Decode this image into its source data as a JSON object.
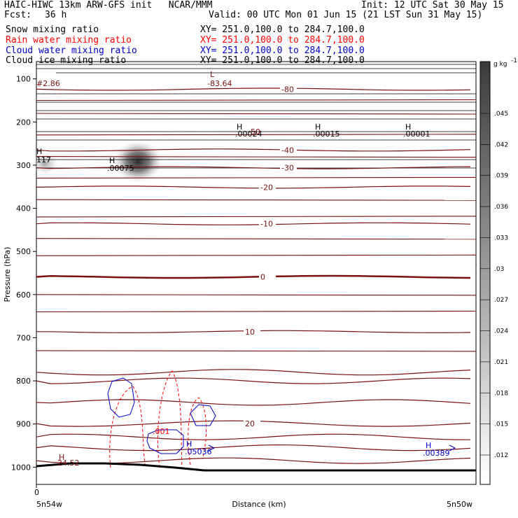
{
  "header": {
    "line1_left": "HAIC-HIWC 13km ARW-GFS init   NCAR/MMM",
    "line1_right": "Init: 12 UTC Sat 30 May 15",
    "fcst_label": "Fcst:",
    "fcst_value": "36 h",
    "valid": "Valid: 00 UTC Mon 01 Jun 15 (21 LST Sun 31 May 15)",
    "fields": [
      {
        "name": "Snow mixing ratio",
        "xy": "XY= 251.0,100.0 to 284.7,100.0",
        "color": "#000000"
      },
      {
        "name": "Rain water mixing ratio",
        "xy": "XY= 251.0,100.0 to 284.7,100.0",
        "color": "#ff0000"
      },
      {
        "name": "Cloud water mixing ratio",
        "xy": "XY= 251.0,100.0 to 284.7,100.0",
        "color": "#0000cc"
      },
      {
        "name": "Cloud ice mixing ratio",
        "xy": "XY= 251.0,100.0 to 284.7,100.0",
        "color": "#000000"
      }
    ]
  },
  "chart_data": {
    "type": "contour-cross-section",
    "ylabel": "Pressure (hPa)",
    "xlabel": "Distance (km)",
    "yticks": [
      100,
      200,
      300,
      400,
      500,
      600,
      700,
      800,
      900,
      1000
    ],
    "ylim": [
      60,
      1040
    ],
    "x_origin_label": "0",
    "x_left_label": "5n54w",
    "x_right_label": "5n50w",
    "temperature_contours": [
      {
        "label": "-80",
        "p": 124
      },
      {
        "label": "-40",
        "p": 265
      },
      {
        "label": "-30",
        "p": 306
      },
      {
        "label": "-20",
        "p": 351
      },
      {
        "label": "-10",
        "p": 436
      },
      {
        "label": "0",
        "p": 559
      },
      {
        "label": "10",
        "p": 686
      },
      {
        "label": "20",
        "p": 899
      }
    ],
    "temperature_color": "#7a1010",
    "annotations": [
      {
        "text": "L",
        "color": "#7a1010"
      },
      {
        "text": "-83.64",
        "color": "#7a1010"
      },
      {
        "text": "#2.86",
        "color": "#7a1010"
      },
      {
        "text": "H",
        "color": "#000000"
      },
      {
        "text": ".00024",
        "color": "#000000"
      },
      {
        "text": ".00015",
        "color": "#000000"
      },
      {
        "text": ".00001",
        "color": "#000000"
      },
      {
        "text": ".00075",
        "color": "#000000"
      },
      {
        "text": "117",
        "color": "#000000"
      },
      {
        "text": "-50",
        "color": "#7a1010"
      },
      {
        "text": "24.52",
        "color": "#7a1010"
      },
      {
        "text": ".001",
        "color": "#ff0000"
      },
      {
        "text": ".05036",
        "color": "#0000cc"
      },
      {
        "text": ".00389",
        "color": "#0000cc"
      }
    ],
    "colorbar": {
      "unit": "g kg",
      "unit_sup": "-1",
      "ticks": [
        ".045",
        ".042",
        ".039",
        ".036",
        ".033",
        ".03",
        ".027",
        ".024",
        ".021",
        ".018",
        ".015",
        ".012"
      ]
    }
  }
}
